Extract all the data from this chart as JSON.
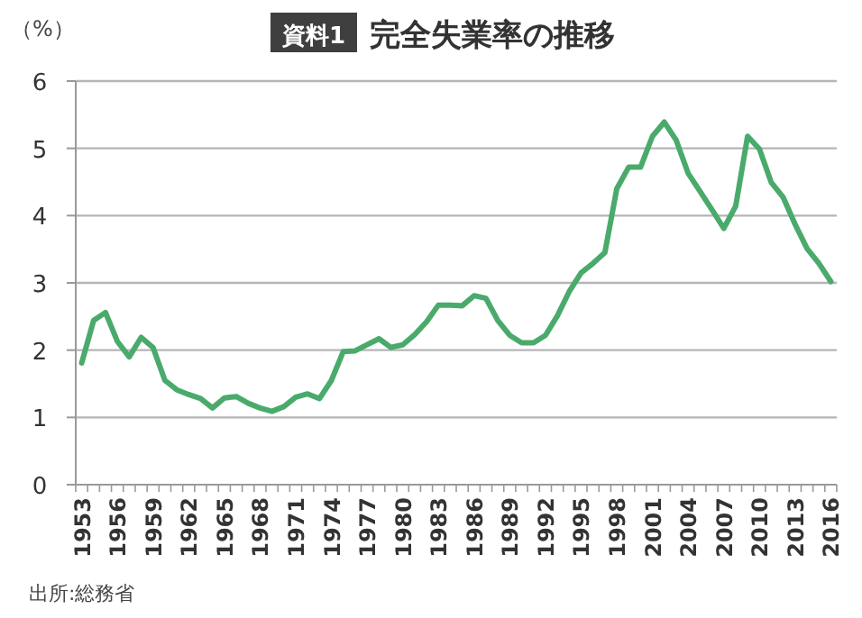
{
  "chart_data": {
    "type": "line",
    "title": "完全失業率の推移",
    "ylabel": "（%）",
    "annotations": [
      "資料1",
      "出所:総務省"
    ],
    "categories": [
      "1953",
      null,
      null,
      "1956",
      null,
      null,
      "1959",
      null,
      null,
      "1962",
      null,
      null,
      "1965",
      null,
      null,
      "1968",
      null,
      null,
      "1971",
      null,
      null,
      "1974",
      null,
      null,
      "1977",
      null,
      null,
      "1980",
      null,
      null,
      "1983",
      null,
      null,
      "1986",
      null,
      null,
      "1989",
      null,
      null,
      "1992",
      null,
      null,
      "1995",
      null,
      null,
      "1998",
      null,
      null,
      "2001",
      null,
      null,
      "2004",
      null,
      null,
      "2007",
      null,
      null,
      "2010",
      null,
      null,
      "2013",
      null,
      null,
      "2016"
    ],
    "values": [
      1.81,
      2.44,
      2.56,
      2.13,
      1.9,
      2.19,
      2.04,
      1.55,
      1.41,
      1.34,
      1.28,
      1.14,
      1.29,
      1.31,
      1.21,
      1.14,
      1.09,
      1.16,
      1.3,
      1.35,
      1.28,
      1.55,
      1.98,
      1.99,
      2.08,
      2.17,
      2.04,
      2.08,
      2.23,
      2.42,
      2.67,
      2.67,
      2.66,
      2.81,
      2.77,
      2.44,
      2.22,
      2.11,
      2.11,
      2.22,
      2.51,
      2.87,
      3.15,
      3.29,
      3.45,
      4.4,
      4.72,
      4.72,
      5.18,
      5.39,
      5.12,
      4.63,
      4.36,
      4.09,
      3.81,
      4.14,
      5.18,
      4.99,
      4.49,
      4.27,
      3.87,
      3.51,
      3.29,
      3.02
    ],
    "color": "#4aaa6c",
    "ylim": [
      0,
      6
    ],
    "yticks": [
      0,
      1,
      2,
      3,
      4,
      5,
      6
    ],
    "grid": "y",
    "marker": "none",
    "line_style": "solid"
  }
}
